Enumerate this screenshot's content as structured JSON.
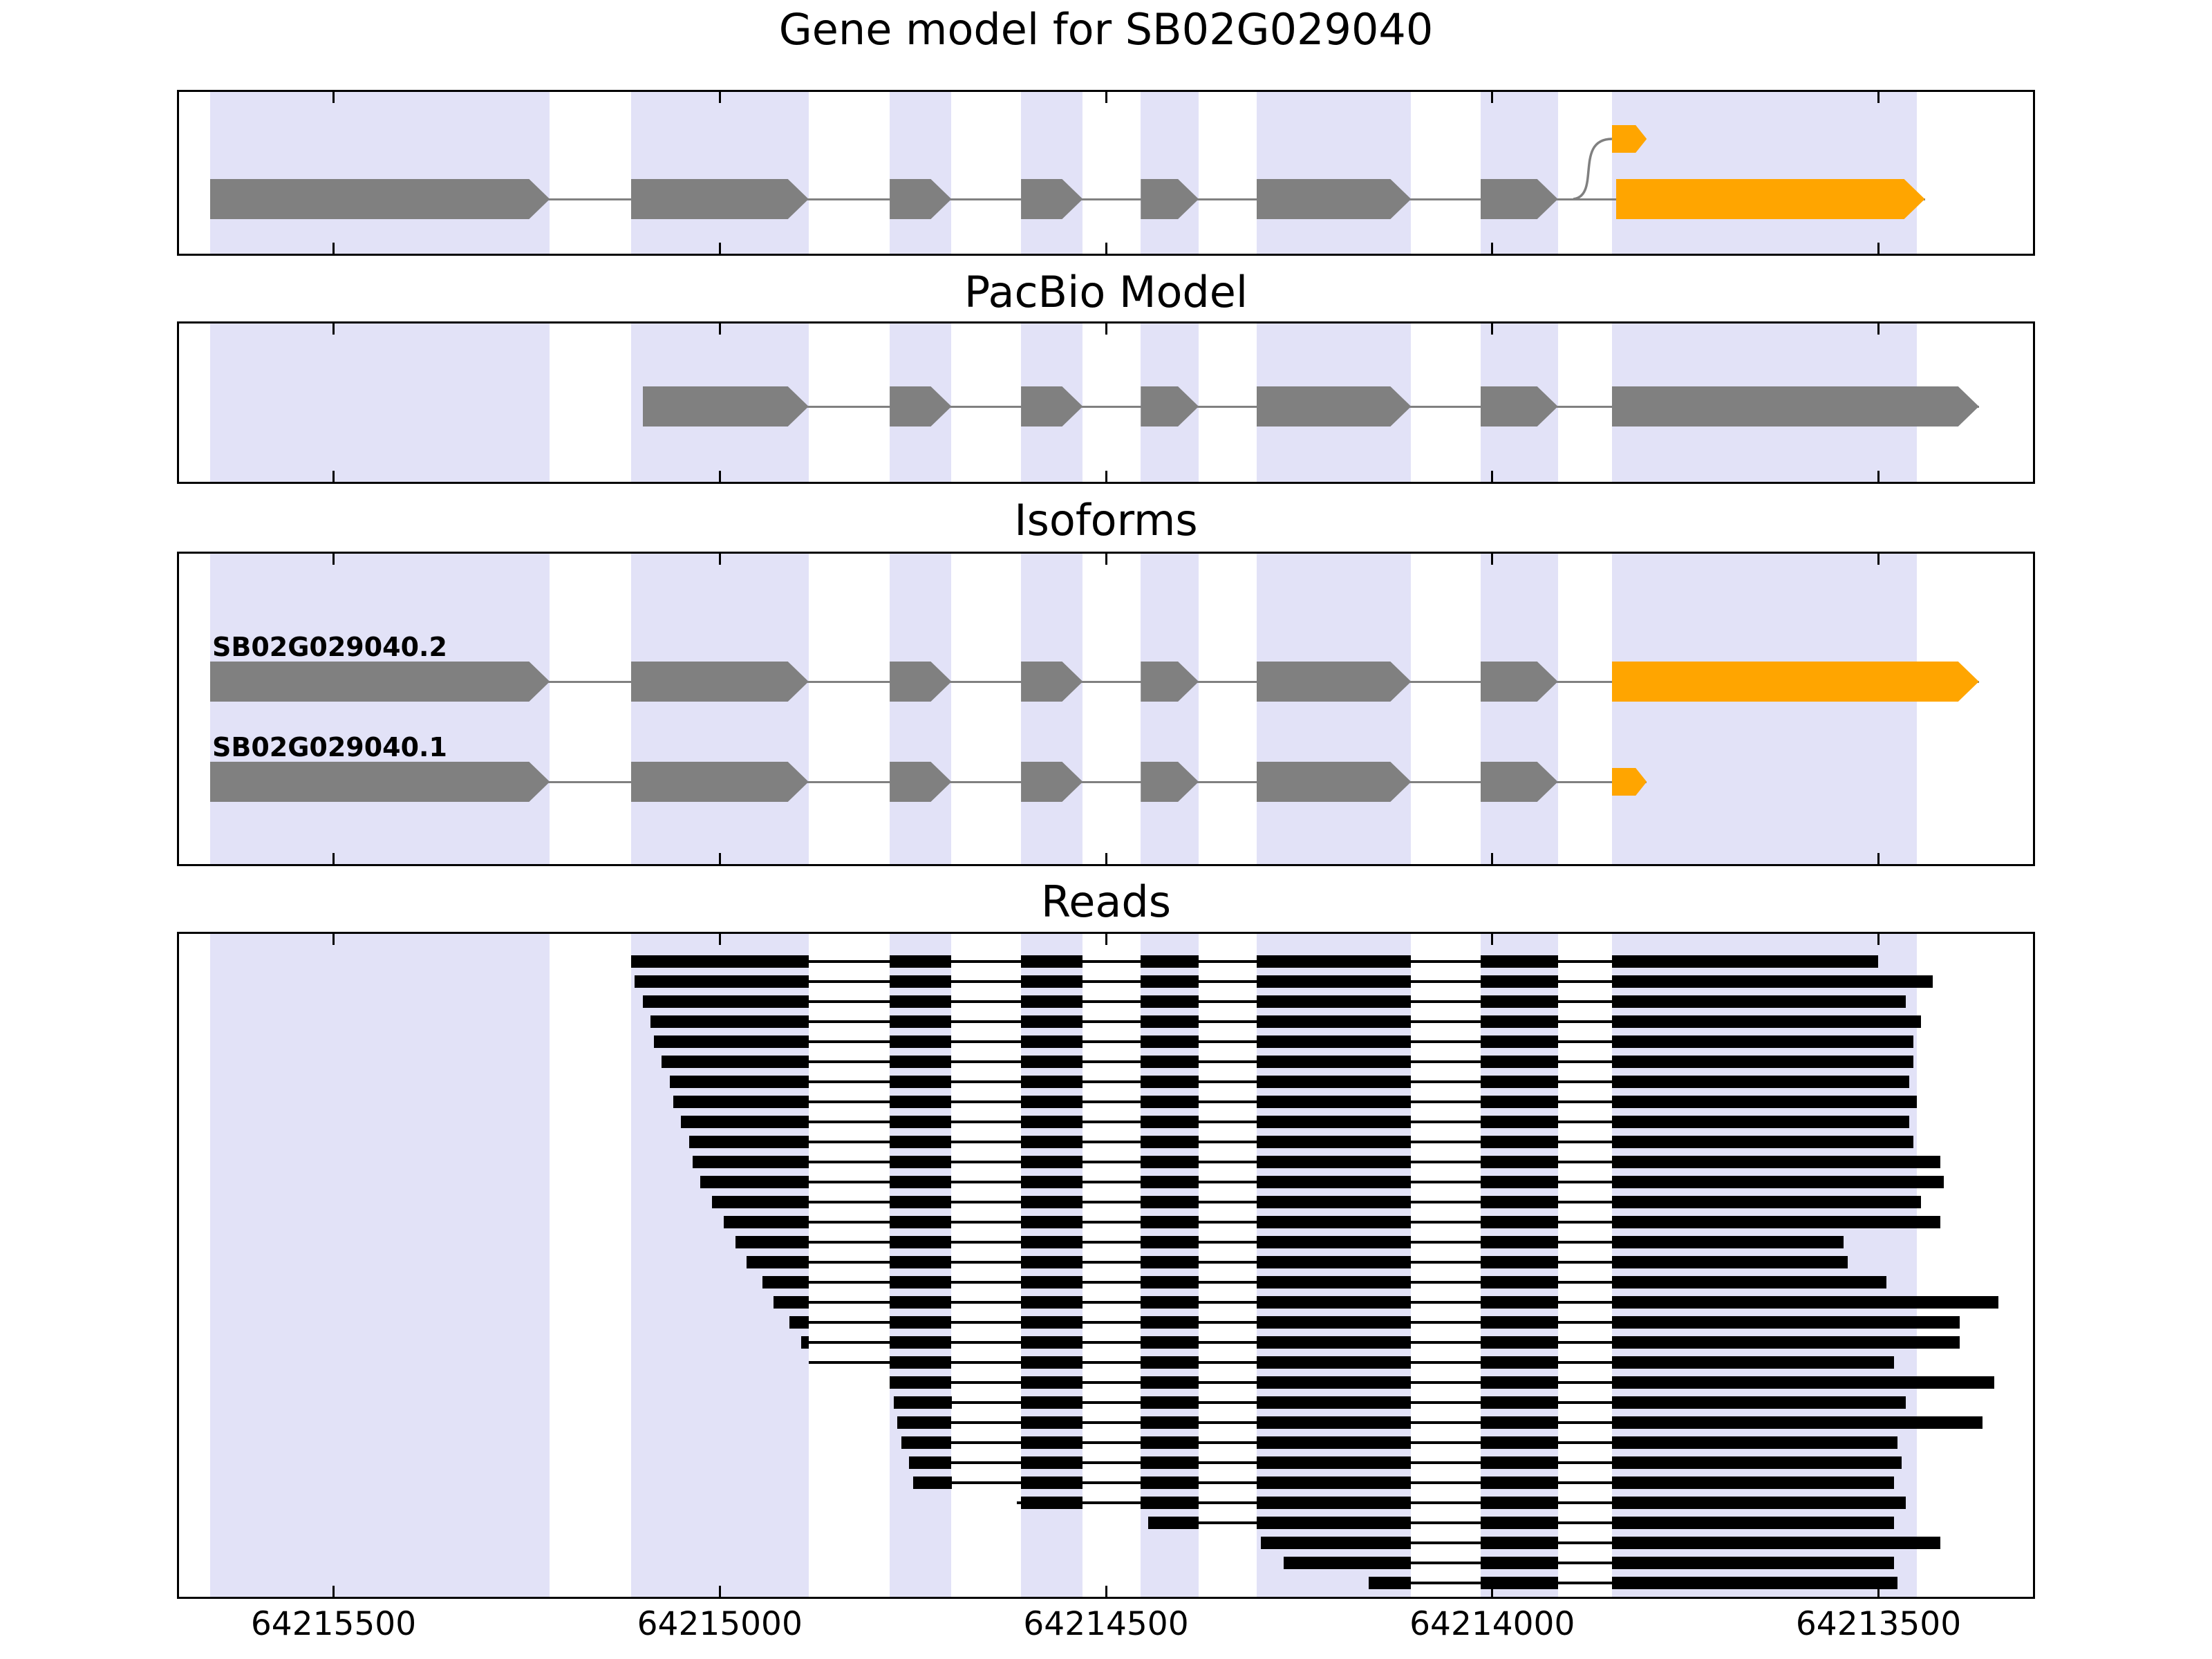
{
  "titles": {
    "gene_model": "Gene model for SB02G029040",
    "pacbio": "PacBio Model",
    "isoforms": "Isoforms",
    "reads": "Reads"
  },
  "axis": {
    "start": 64215700,
    "end": 64213300,
    "orientation": "decreasing",
    "ticks": [
      64215500,
      64215000,
      64214500,
      64214000,
      64213500
    ],
    "tick_labels": [
      "64215500",
      "64215000",
      "64214500",
      "64214000",
      "64213500"
    ]
  },
  "colors": {
    "band": "#E2E2F7",
    "exon_gray": "#808080",
    "highlight": "#FFA500",
    "intron_line": "#808080",
    "read": "#000000",
    "border": "#000000",
    "text": "#000000"
  },
  "chart_data": {
    "type": "genome-browser-tracks",
    "title": "Gene model for SB02G029040",
    "gene_id": "SB02G029040",
    "x_axis_ticks": [
      64215500,
      64215000,
      64214500,
      64214000,
      64213500
    ],
    "bands": [
      [
        64215660,
        64215220
      ],
      [
        64215115,
        64214885
      ],
      [
        64214780,
        64214700
      ],
      [
        64214610,
        64214530
      ],
      [
        64214455,
        64214380
      ],
      [
        64214305,
        64214105
      ],
      [
        64214015,
        64213915
      ],
      [
        64213845,
        64213450
      ]
    ],
    "gene_model": {
      "exons": [
        {
          "s": 64215660,
          "e": 64215220,
          "c": "gray"
        },
        {
          "s": 64215115,
          "e": 64214885,
          "c": "gray"
        },
        {
          "s": 64214780,
          "e": 64214700,
          "c": "gray"
        },
        {
          "s": 64214610,
          "e": 64214530,
          "c": "gray"
        },
        {
          "s": 64214455,
          "e": 64214380,
          "c": "gray"
        },
        {
          "s": 64214305,
          "e": 64214105,
          "c": "gray"
        },
        {
          "s": 64214015,
          "e": 64213915,
          "c": "gray"
        },
        {
          "s": 64213840,
          "e": 64213440,
          "c": "orange"
        }
      ],
      "elevated_exon": {
        "s": 64213845,
        "e": 64213800,
        "c": "orange",
        "small": true
      },
      "splice_curve": {
        "from": 64213895
      }
    },
    "pacbio": {
      "exons": [
        {
          "s": 64215100,
          "e": 64214885,
          "c": "gray"
        },
        {
          "s": 64214780,
          "e": 64214700,
          "c": "gray"
        },
        {
          "s": 64214610,
          "e": 64214530,
          "c": "gray"
        },
        {
          "s": 64214455,
          "e": 64214380,
          "c": "gray"
        },
        {
          "s": 64214305,
          "e": 64214105,
          "c": "gray"
        },
        {
          "s": 64214015,
          "e": 64213915,
          "c": "gray"
        },
        {
          "s": 64213845,
          "e": 64213370,
          "c": "gray"
        }
      ]
    },
    "isoforms": [
      {
        "name": "SB02G029040.2",
        "exons": [
          {
            "s": 64215660,
            "e": 64215220,
            "c": "gray"
          },
          {
            "s": 64215115,
            "e": 64214885,
            "c": "gray"
          },
          {
            "s": 64214780,
            "e": 64214700,
            "c": "gray"
          },
          {
            "s": 64214610,
            "e": 64214530,
            "c": "gray"
          },
          {
            "s": 64214455,
            "e": 64214380,
            "c": "gray"
          },
          {
            "s": 64214305,
            "e": 64214105,
            "c": "gray"
          },
          {
            "s": 64214015,
            "e": 64213915,
            "c": "gray"
          },
          {
            "s": 64213845,
            "e": 64213370,
            "c": "orange"
          }
        ]
      },
      {
        "name": "SB02G029040.1",
        "exons": [
          {
            "s": 64215660,
            "e": 64215220,
            "c": "gray"
          },
          {
            "s": 64215115,
            "e": 64214885,
            "c": "gray"
          },
          {
            "s": 64214780,
            "e": 64214700,
            "c": "gray"
          },
          {
            "s": 64214610,
            "e": 64214530,
            "c": "gray"
          },
          {
            "s": 64214455,
            "e": 64214380,
            "c": "gray"
          },
          {
            "s": 64214305,
            "e": 64214105,
            "c": "gray"
          },
          {
            "s": 64214015,
            "e": 64213915,
            "c": "gray"
          },
          {
            "s": 64213845,
            "e": 64213800,
            "c": "orange",
            "small": true
          }
        ]
      }
    ],
    "read_exon_model": [
      [
        64215115,
        64214885
      ],
      [
        64214780,
        64214700
      ],
      [
        64214610,
        64214530
      ],
      [
        64214455,
        64214380
      ],
      [
        64214305,
        64214105
      ],
      [
        64214015,
        64213915
      ],
      [
        64213845,
        null
      ]
    ],
    "reads": [
      [
        64215115,
        64213500
      ],
      [
        64215110,
        64213430
      ],
      [
        64215100,
        64213465
      ],
      [
        64215090,
        64213445
      ],
      [
        64215085,
        64213455
      ],
      [
        64215075,
        64213455
      ],
      [
        64215065,
        64213460
      ],
      [
        64215060,
        64213450
      ],
      [
        64215050,
        64213460
      ],
      [
        64215040,
        64213455
      ],
      [
        64215035,
        64213420
      ],
      [
        64215025,
        64213415
      ],
      [
        64215010,
        64213445
      ],
      [
        64214995,
        64213420
      ],
      [
        64214980,
        64213545
      ],
      [
        64214965,
        64213540
      ],
      [
        64214945,
        64213490
      ],
      [
        64214930,
        64213345
      ],
      [
        64214910,
        64213395
      ],
      [
        64214895,
        64213395
      ],
      [
        64214885,
        64213480
      ],
      [
        64214780,
        64213350
      ],
      [
        64214775,
        64213465
      ],
      [
        64214770,
        64213365
      ],
      [
        64214765,
        64213475
      ],
      [
        64214755,
        64213470
      ],
      [
        64214750,
        64213480
      ],
      [
        64214615,
        64213465
      ],
      [
        64214445,
        64213480
      ],
      [
        64214300,
        64213420
      ],
      [
        64214270,
        64213480
      ],
      [
        64214160,
        64213475
      ]
    ]
  }
}
